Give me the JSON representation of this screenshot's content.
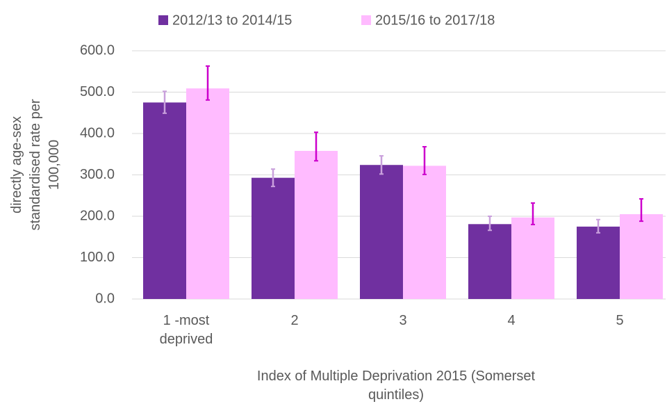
{
  "chart_data": {
    "type": "bar",
    "x_label": "Index of Multiple Deprivation 2015 (Somerset quintiles)",
    "y_label": "directly age-sex standardised rate per 100,000",
    "categories": [
      "1 -most deprived",
      "2",
      "3",
      "4",
      "5"
    ],
    "series": [
      {
        "name": "2012/13 to 2014/15",
        "color": "#7030a0",
        "error_color": "#c9a0dc",
        "values": [
          475,
          293,
          324,
          181,
          175
        ],
        "error_low": [
          449,
          272,
          302,
          166,
          160
        ],
        "error_high": [
          502,
          314,
          346,
          200,
          192
        ]
      },
      {
        "name": "2015/16 to 2017/18",
        "color": "#ffbbff",
        "error_color": "#cc00cc",
        "values": [
          509,
          358,
          322,
          197,
          205
        ],
        "error_low": [
          481,
          334,
          301,
          180,
          188
        ],
        "error_high": [
          563,
          403,
          368,
          232,
          242
        ]
      }
    ],
    "ylim": [
      0,
      600
    ],
    "yticks": [
      {
        "value": 0,
        "label": "0.0"
      },
      {
        "value": 100,
        "label": "100.0"
      },
      {
        "value": 200,
        "label": "200.0"
      },
      {
        "value": 300,
        "label": "300.0"
      },
      {
        "value": 400,
        "label": "400.0"
      },
      {
        "value": 500,
        "label": "500.0"
      },
      {
        "value": 600,
        "label": "600.0"
      }
    ],
    "grid": true,
    "legend": "top"
  }
}
